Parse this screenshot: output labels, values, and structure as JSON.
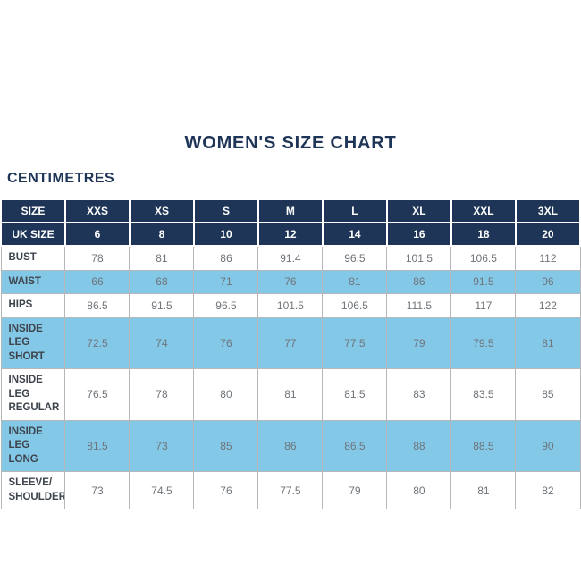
{
  "page": {
    "title": "WOMEN'S SIZE CHART",
    "subtitle": "CENTIMETRES"
  },
  "colors": {
    "navy": "#1e3557",
    "light_blue": "#84c8e8",
    "border": "#b5b7b9",
    "label_text": "#3e444c",
    "value_text": "#6f7479",
    "header_text": "#ffffff",
    "background": "#ffffff"
  },
  "chart_data": {
    "type": "table",
    "title": "WOMEN'S SIZE CHART",
    "units": "CENTIMETRES",
    "columns": 9,
    "header_rows": [
      {
        "label": "SIZE",
        "values": [
          "XXS",
          "XS",
          "S",
          "M",
          "L",
          "XL",
          "XXL",
          "3XL"
        ]
      },
      {
        "label": "UK SIZE",
        "values": [
          "6",
          "8",
          "10",
          "12",
          "14",
          "16",
          "18",
          "20"
        ]
      }
    ],
    "rows": [
      {
        "label": "BUST",
        "highlight": false,
        "values": [
          "78",
          "81",
          "86",
          "91.4",
          "96.5",
          "101.5",
          "106.5",
          "112"
        ]
      },
      {
        "label": "WAIST",
        "highlight": true,
        "values": [
          "66",
          "68",
          "71",
          "76",
          "81",
          "86",
          "91.5",
          "96"
        ]
      },
      {
        "label": "HIPS",
        "highlight": false,
        "values": [
          "86.5",
          "91.5",
          "96.5",
          "101.5",
          "106.5",
          "111.5",
          "117",
          "122"
        ]
      },
      {
        "label": "INSIDE LEG\nSHORT",
        "highlight": true,
        "values": [
          "72.5",
          "74",
          "76",
          "77",
          "77.5",
          "79",
          "79.5",
          "81"
        ]
      },
      {
        "label": "INSIDE LEG\nREGULAR",
        "highlight": false,
        "values": [
          "76.5",
          "78",
          "80",
          "81",
          "81.5",
          "83",
          "83.5",
          "85"
        ]
      },
      {
        "label": "INSIDE LEG\nLONG",
        "highlight": true,
        "values": [
          "81.5",
          "73",
          "85",
          "86",
          "86.5",
          "88",
          "88.5",
          "90"
        ]
      },
      {
        "label": "SLEEVE/\nSHOULDER",
        "highlight": false,
        "values": [
          "73",
          "74.5",
          "76",
          "77.5",
          "79",
          "80",
          "81",
          "82"
        ]
      }
    ]
  }
}
